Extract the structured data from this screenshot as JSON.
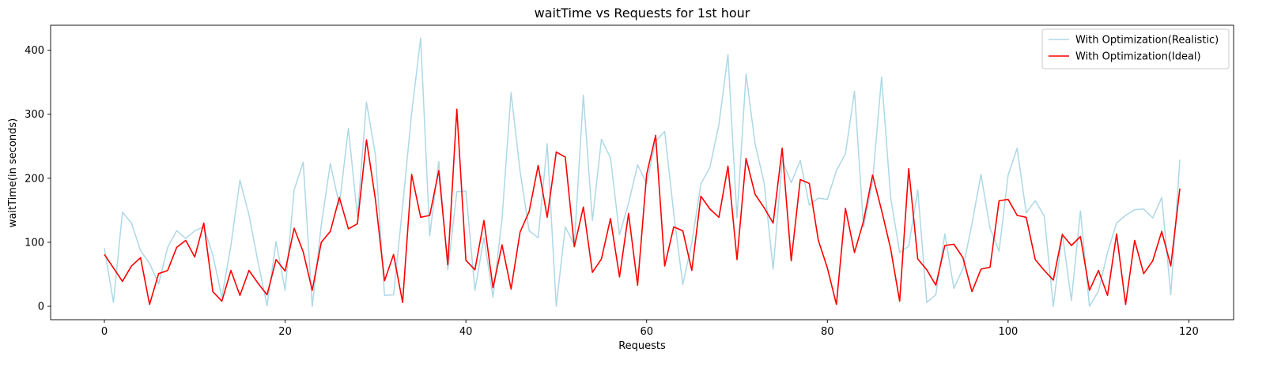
{
  "chart_data": {
    "type": "line",
    "title": "waitTime vs Requests for 1st hour",
    "xlabel": "Requests",
    "ylabel": "waitTime(in seconds)",
    "xlim": [
      -5.95,
      124.95
    ],
    "ylim": [
      -20.9,
      439.0
    ],
    "xticks": [
      0,
      20,
      40,
      60,
      80,
      100,
      120
    ],
    "yticks": [
      0,
      100,
      200,
      300,
      400
    ],
    "grid": false,
    "legend_position": "top-right",
    "series": [
      {
        "name": "With Optimization(Realistic)",
        "color": "#add8e6",
        "values": [
          91,
          6,
          147,
          130,
          87,
          67,
          35,
          92,
          118,
          106,
          118,
          124,
          80,
          14,
          95,
          197,
          143,
          69,
          1,
          101,
          25,
          182,
          225,
          0,
          127,
          223,
          158,
          278,
          140,
          319,
          236,
          17,
          18,
          156,
          302,
          419,
          110,
          226,
          57,
          179,
          180,
          25,
          107,
          14,
          137,
          334,
          211,
          118,
          107,
          254,
          0,
          124,
          96,
          330,
          134,
          261,
          232,
          112,
          161,
          221,
          192,
          258,
          273,
          145,
          34,
          99,
          191,
          217,
          284,
          393,
          138,
          363,
          254,
          193,
          58,
          228,
          193,
          228,
          158,
          169,
          167,
          212,
          238,
          336,
          124,
          195,
          358,
          170,
          84,
          94,
          182,
          6,
          18,
          113,
          28,
          59,
          129,
          206,
          122,
          86,
          205,
          247,
          146,
          165,
          141,
          0,
          114,
          9,
          149,
          0,
          24,
          84,
          130,
          142,
          151,
          152,
          138,
          170,
          18,
          229
        ]
      },
      {
        "name": "With Optimization(Ideal)",
        "color": "#ff0000",
        "values": [
          81,
          60,
          39,
          63,
          76,
          3,
          51,
          56,
          92,
          103,
          77,
          130,
          23,
          8,
          56,
          17,
          56,
          36,
          18,
          73,
          55,
          122,
          85,
          25,
          100,
          117,
          170,
          121,
          129,
          260,
          166,
          40,
          81,
          6,
          206,
          139,
          142,
          212,
          65,
          308,
          72,
          57,
          134,
          29,
          96,
          27,
          116,
          148,
          220,
          139,
          241,
          233,
          93,
          155,
          53,
          74,
          137,
          46,
          145,
          33,
          206,
          267,
          63,
          124,
          118,
          56,
          172,
          152,
          139,
          219,
          73,
          231,
          175,
          154,
          130,
          247,
          71,
          198,
          192,
          103,
          60,
          3,
          153,
          84,
          133,
          205,
          150,
          90,
          8,
          215,
          74,
          57,
          33,
          95,
          97,
          76,
          23,
          58,
          61,
          165,
          167,
          142,
          139,
          73,
          56,
          41,
          112,
          95,
          109,
          25,
          56,
          17,
          113,
          3,
          103,
          51,
          71,
          117,
          63,
          184
        ]
      }
    ]
  }
}
